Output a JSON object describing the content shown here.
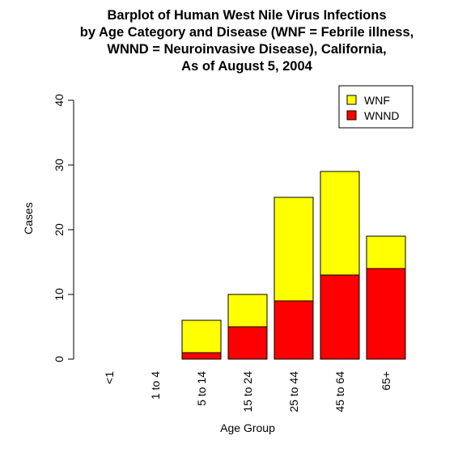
{
  "chart_data": {
    "type": "bar",
    "stacked": true,
    "title_lines": [
      "Barplot of Human West Nile Virus Infections",
      "by Age Category and Disease (WNF = Febrile illness,",
      "WNND = Neuroinvasive Disease), California,",
      "As of August 5, 2004"
    ],
    "xlabel": "Age Group",
    "ylabel": "Cases",
    "ylim": [
      0,
      40
    ],
    "yticks": [
      0,
      10,
      20,
      30,
      40
    ],
    "categories": [
      "<1",
      "1 to 4",
      "5 to 14",
      "15 to 24",
      "25 to 44",
      "45 to 64",
      "65+"
    ],
    "series": [
      {
        "name": "WNND",
        "color": "#ff0000",
        "values": [
          0,
          0,
          1,
          5,
          9,
          13,
          14
        ]
      },
      {
        "name": "WNF",
        "color": "#ffff00",
        "values": [
          0,
          0,
          5,
          5,
          16,
          16,
          5
        ]
      }
    ],
    "legend": {
      "placement": "top-right",
      "order": [
        "WNF",
        "WNND"
      ]
    },
    "grid": false
  }
}
